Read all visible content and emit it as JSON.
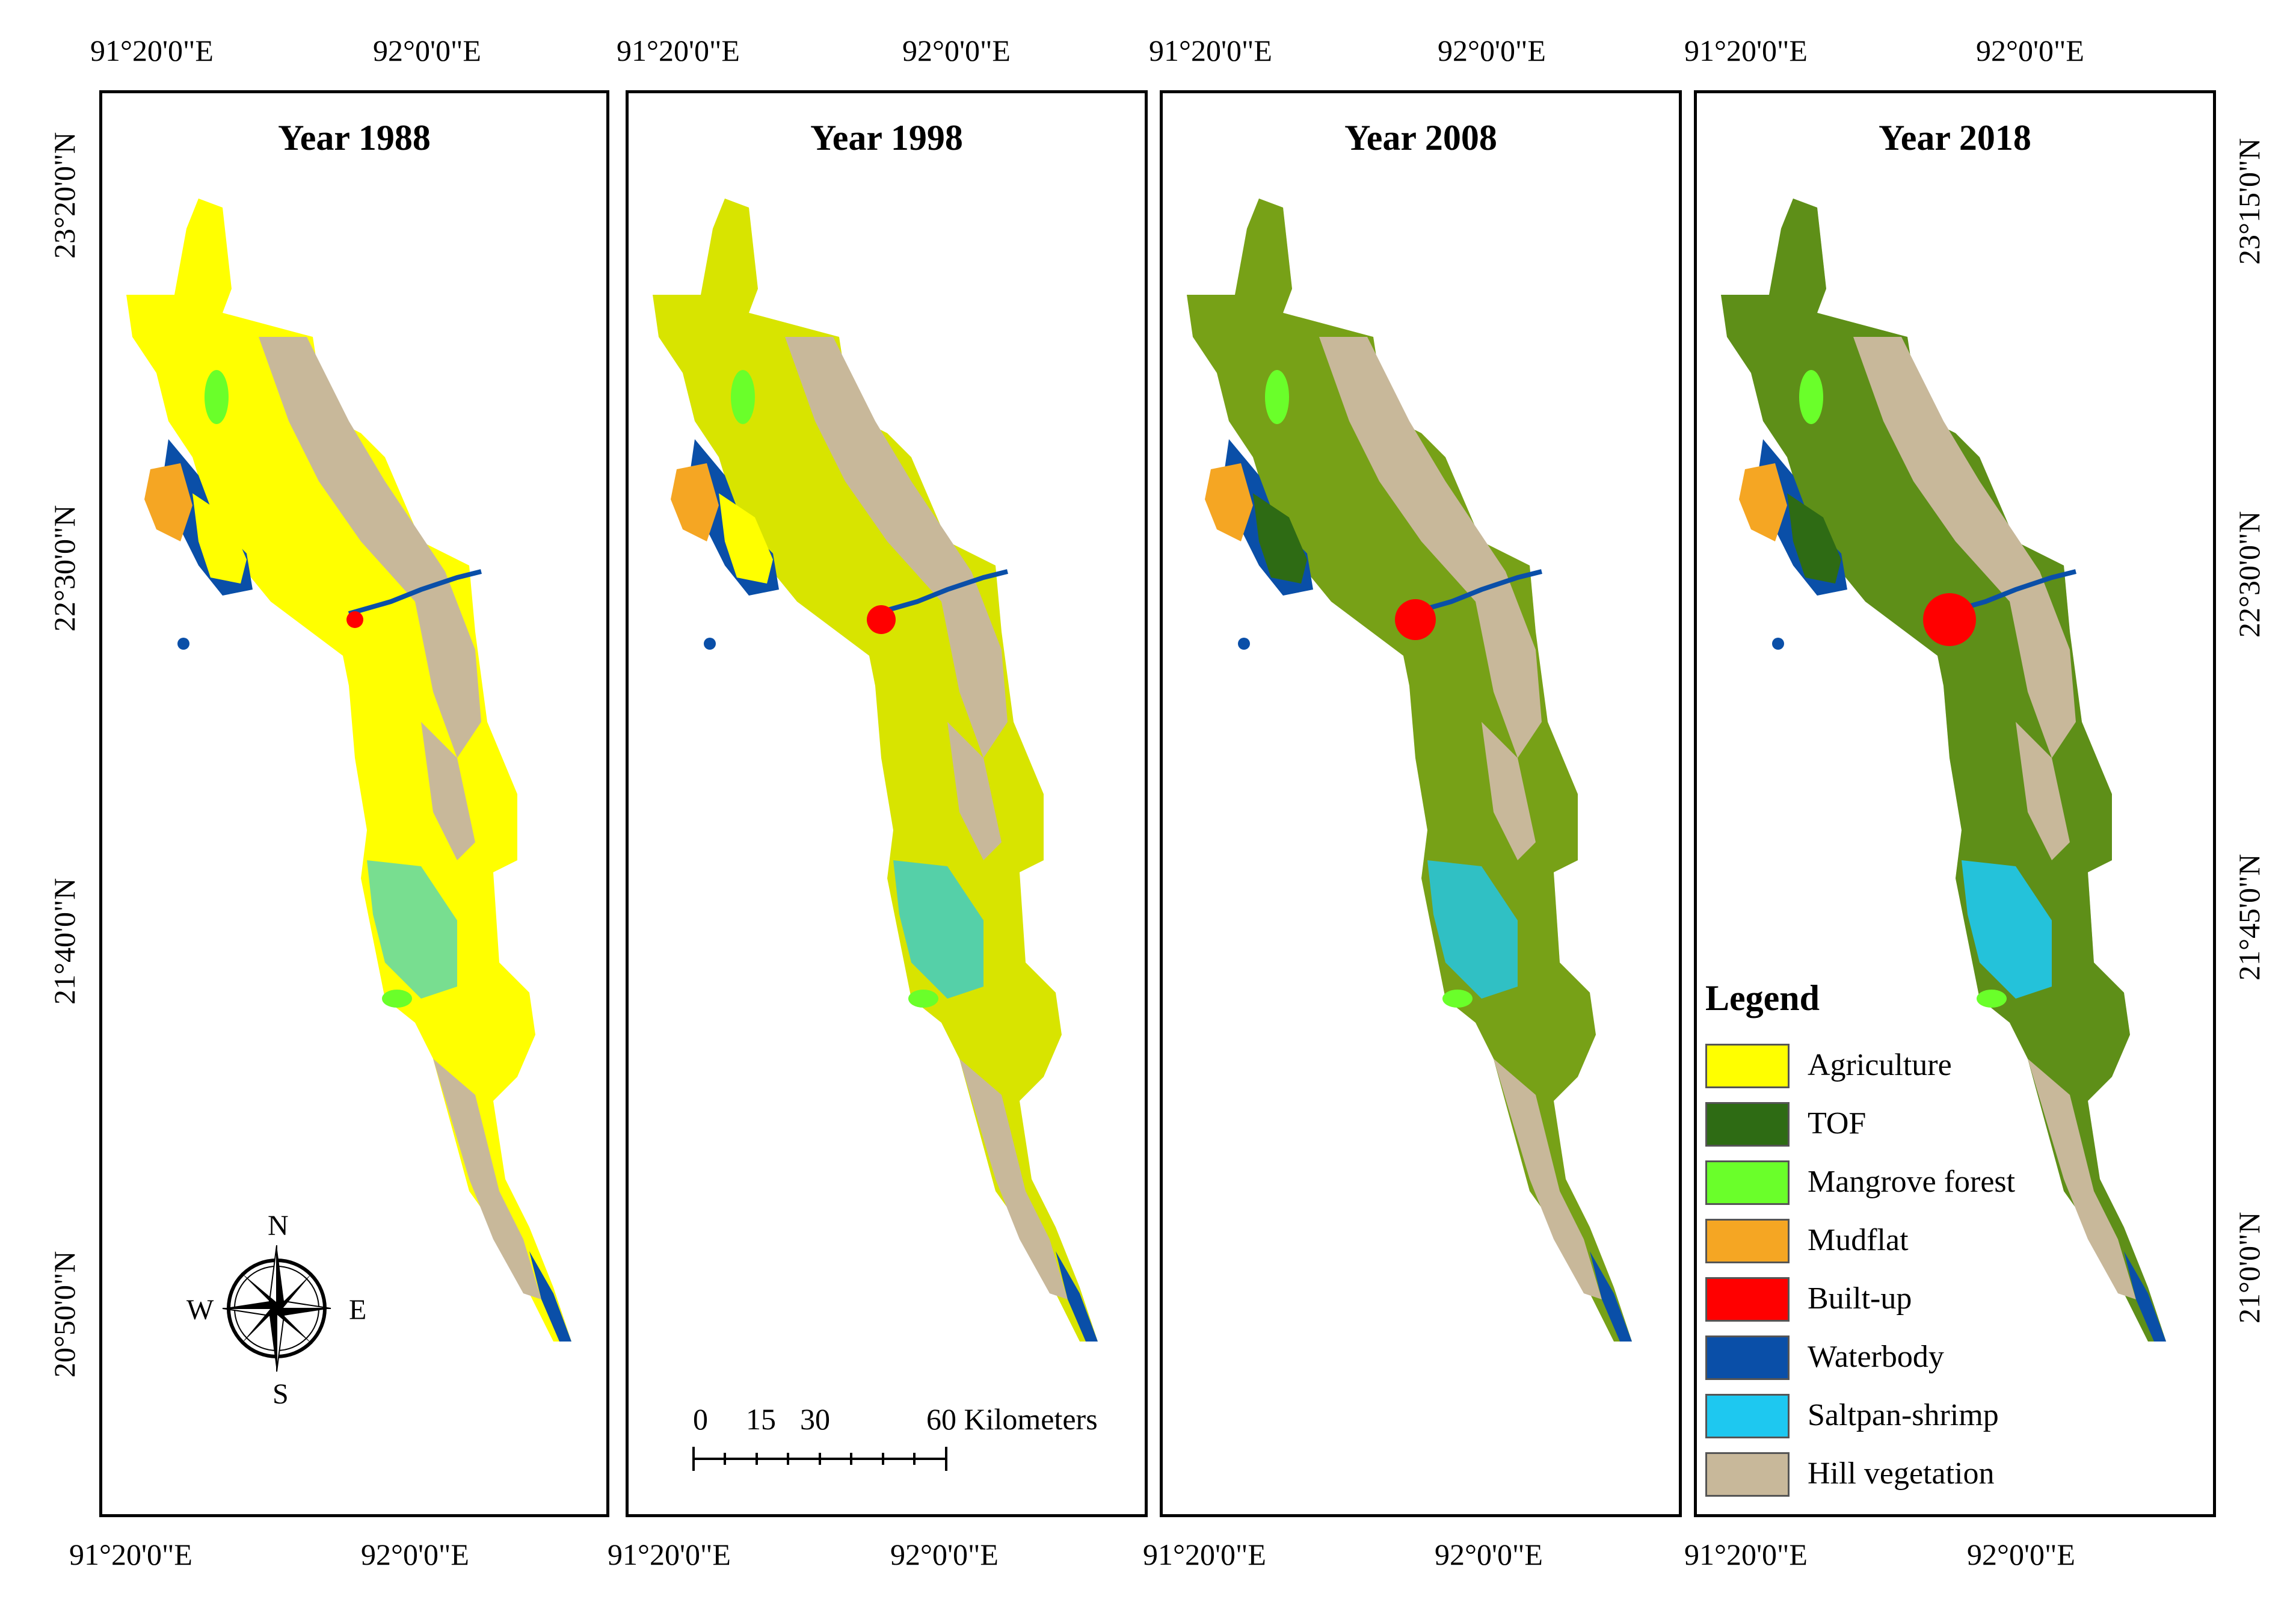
{
  "panels": [
    {
      "title": "Year 1988"
    },
    {
      "title": "Year 1998"
    },
    {
      "title": "Year 2008"
    },
    {
      "title": "Year 2018"
    }
  ],
  "top_coords": [
    "91°20'0\"E",
    "92°0'0\"E"
  ],
  "bottom_coords": [
    "91°20'0\"E",
    "92°0'0\"E"
  ],
  "left_coords": [
    "23°20'0\"N",
    "22°30'0\"N",
    "21°40'0\"N",
    "20°50'0\"N"
  ],
  "right_coords": [
    "23°15'0\"N",
    "22°30'0\"N",
    "21°45'0\"N",
    "21°0'0\"N"
  ],
  "compass": {
    "n": "N",
    "e": "E",
    "s": "S",
    "w": "W"
  },
  "scale_bar": {
    "labels": [
      "0",
      "15",
      "30",
      "60 Kilometers"
    ]
  },
  "legend": {
    "title": "Legend",
    "items": [
      {
        "label": "Agriculture",
        "color": "#ffff00"
      },
      {
        "label": "TOF",
        "color": "#2e6b14"
      },
      {
        "label": "Mangrove forest",
        "color": "#6aff2a"
      },
      {
        "label": "Mudflat",
        "color": "#f5a623"
      },
      {
        "label": "Built-up",
        "color": "#ff0000"
      },
      {
        "label": "Waterbody",
        "color": "#0a4fa8"
      },
      {
        "label": "Saltpan-shrimp",
        "color": "#1ec8f0"
      },
      {
        "label": "Hill vegetation",
        "color": "#c8b89a"
      }
    ]
  }
}
